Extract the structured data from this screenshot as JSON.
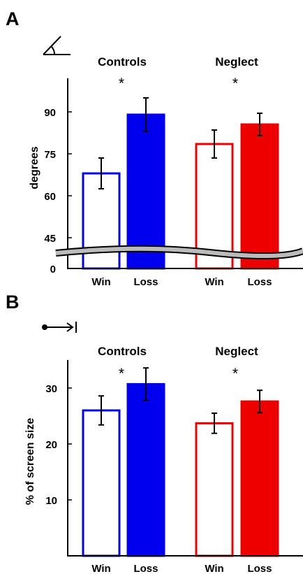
{
  "panels": [
    {
      "letter": "A",
      "icon": "angle-icon"
    },
    {
      "letter": "B",
      "icon": "arrow-to-line-icon"
    }
  ],
  "colors": {
    "controls": "#0000ee",
    "neglect": "#ee0000",
    "axis": "#000000",
    "break_band": "#bbbbbb"
  },
  "chart_data": [
    {
      "type": "bar",
      "panel": "A",
      "groups": [
        "Controls",
        "Neglect"
      ],
      "categories": [
        "Win",
        "Loss",
        "Win",
        "Loss"
      ],
      "series": [
        {
          "group": "Controls",
          "category": "Win",
          "value": 68,
          "error": 5.5,
          "fill": "none"
        },
        {
          "group": "Controls",
          "category": "Loss",
          "value": 89,
          "error": 6,
          "fill": "solid"
        },
        {
          "group": "Neglect",
          "category": "Win",
          "value": 78.5,
          "error": 5,
          "fill": "none"
        },
        {
          "group": "Neglect",
          "category": "Loss",
          "value": 85.5,
          "error": 4,
          "fill": "solid"
        }
      ],
      "significance": [
        "*",
        "*"
      ],
      "ylabel": "degrees",
      "yticks": [
        "0",
        "45",
        "60",
        "75",
        "90"
      ],
      "ylim": [
        0,
        100
      ],
      "axis_break": [
        0,
        40
      ],
      "grid": false
    },
    {
      "type": "bar",
      "panel": "B",
      "groups": [
        "Controls",
        "Neglect"
      ],
      "categories": [
        "Win",
        "Loss",
        "Win",
        "Loss"
      ],
      "series": [
        {
          "group": "Controls",
          "category": "Win",
          "value": 26,
          "error": 2.6,
          "fill": "none"
        },
        {
          "group": "Controls",
          "category": "Loss",
          "value": 30.7,
          "error": 2.9,
          "fill": "solid"
        },
        {
          "group": "Neglect",
          "category": "Win",
          "value": 23.7,
          "error": 1.8,
          "fill": "none"
        },
        {
          "group": "Neglect",
          "category": "Loss",
          "value": 27.6,
          "error": 2,
          "fill": "solid"
        }
      ],
      "significance": [
        "*",
        "*"
      ],
      "ylabel": "% of screen size",
      "yticks": [
        "10",
        "20",
        "30"
      ],
      "ylim": [
        0,
        35
      ],
      "grid": false
    }
  ]
}
